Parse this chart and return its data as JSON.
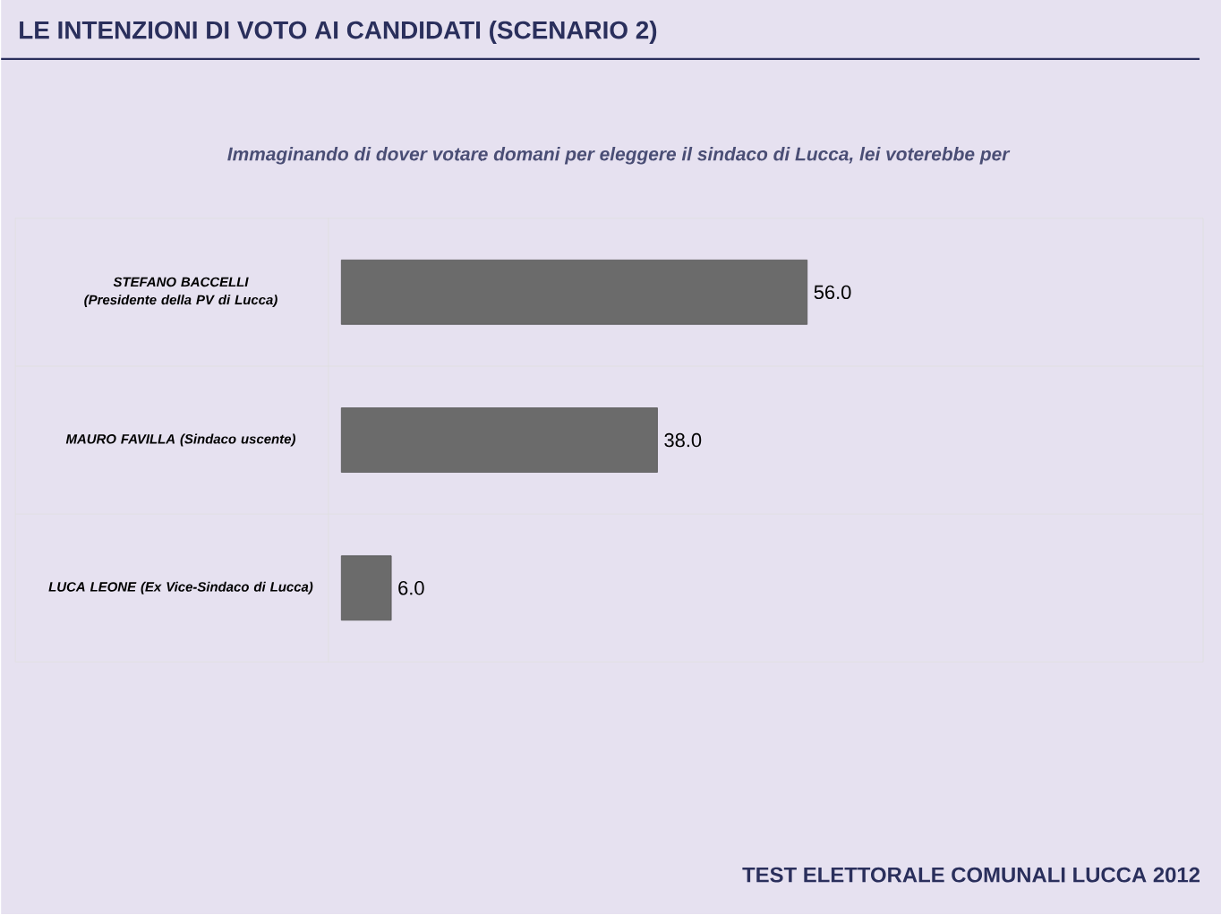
{
  "chart_data": {
    "type": "bar",
    "orientation": "horizontal",
    "title": "LE INTENZIONI DI VOTO AI CANDIDATI (SCENARIO 2)",
    "subtitle": "Immaginando di dover votare domani per eleggere il sindaco di Lucca, lei voterebbe per",
    "categories": [
      "STEFANO BACCELLI (Presidente della PV di Lucca)",
      "MAURO FAVILLA (Sindaco uscente)",
      "LUCA LEONE (Ex Vice-Sindaco di Lucca)"
    ],
    "values": [
      56,
      38,
      6
    ],
    "value_labels": [
      "56.0",
      "38.0",
      "6.0"
    ],
    "color": "#6b6b6b",
    "annotations": [
      "TEST ELETTORALE COMUNALI LUCCA 2012"
    ]
  }
}
